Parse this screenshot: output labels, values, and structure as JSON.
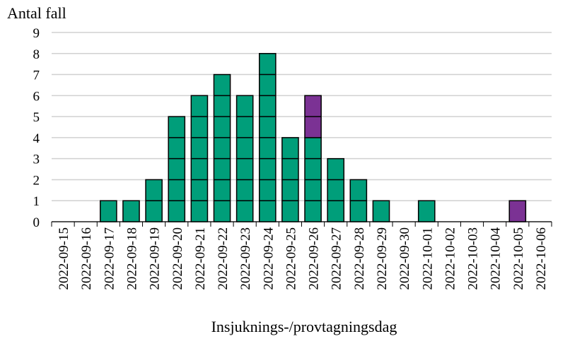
{
  "chart_data": {
    "type": "bar",
    "stacked": true,
    "y_axis_title": "Antal fall",
    "x_axis_title": "Insjuknings-/provtagningsdag",
    "categories": [
      "2022-09-15",
      "2022-09-16",
      "2022-09-17",
      "2022-09-18",
      "2022-09-19",
      "2022-09-20",
      "2022-09-21",
      "2022-09-22",
      "2022-09-23",
      "2022-09-24",
      "2022-09-25",
      "2022-09-26",
      "2022-09-27",
      "2022-09-28",
      "2022-09-29",
      "2022-09-30",
      "2022-10-01",
      "2022-10-02",
      "2022-10-03",
      "2022-10-04",
      "2022-10-05",
      "2022-10-06"
    ],
    "series": [
      {
        "color": "#009e7a",
        "values": [
          0,
          0,
          1,
          1,
          2,
          5,
          6,
          7,
          6,
          8,
          4,
          4,
          3,
          2,
          1,
          0,
          1,
          0,
          0,
          0,
          0,
          0
        ]
      },
      {
        "color": "#7b3294",
        "values": [
          0,
          0,
          0,
          0,
          0,
          0,
          0,
          0,
          0,
          0,
          0,
          2,
          0,
          0,
          0,
          0,
          0,
          0,
          0,
          0,
          1,
          0
        ]
      }
    ],
    "ylim": [
      0,
      9
    ],
    "yticks": [
      0,
      1,
      2,
      3,
      4,
      5,
      6,
      7,
      8,
      9
    ],
    "grid": true
  }
}
